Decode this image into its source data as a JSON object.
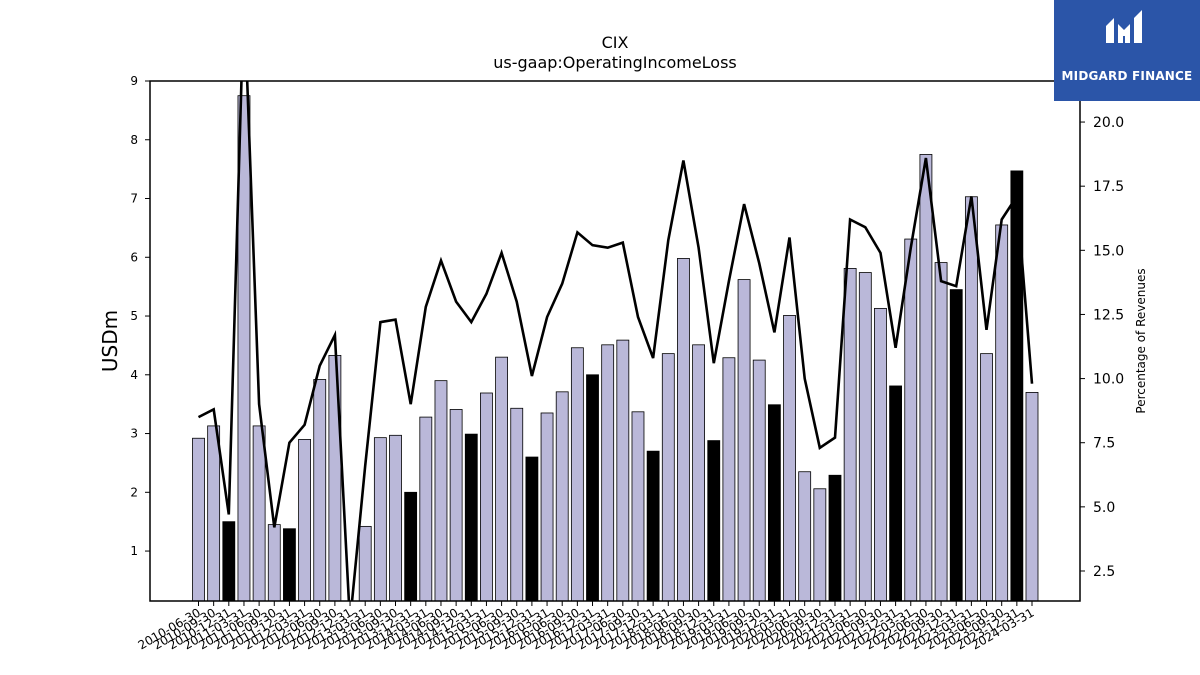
{
  "chart_data": {
    "type": "bar",
    "title": "CIX",
    "subtitle": "us-gaap:OperatingIncomeLoss",
    "ylabel": "USDm",
    "y2label": "Percentage of Revenues",
    "ylim": [
      0.15,
      9.0
    ],
    "y2lim": [
      1.33,
      21.6
    ],
    "yticks": [
      1,
      2,
      3,
      4,
      5,
      6,
      7,
      8,
      9
    ],
    "y2ticks": [
      2.5,
      5.0,
      7.5,
      10.0,
      12.5,
      15.0,
      17.5,
      20.0
    ],
    "colors": {
      "bar": "#bab8d9",
      "bar_highlight": "#000000",
      "line": "#000000"
    },
    "categories": [
      "2010-06-30",
      "2010-09-30",
      "2010-12-31",
      "2011-03-31",
      "2011-06-30",
      "2011-09-30",
      "2011-12-31",
      "2012-03-31",
      "2012-06-30",
      "2012-09-30",
      "2012-12-31",
      "2013-03-31",
      "2013-06-30",
      "2013-09-30",
      "2013-12-31",
      "2014-03-31",
      "2014-06-30",
      "2014-09-30",
      "2014-12-31",
      "2015-03-31",
      "2015-06-30",
      "2015-09-30",
      "2015-12-31",
      "2016-03-31",
      "2016-06-30",
      "2016-09-30",
      "2016-12-31",
      "2017-03-31",
      "2017-06-30",
      "2017-09-30",
      "2017-12-31",
      "2018-03-31",
      "2018-06-30",
      "2018-09-30",
      "2018-12-31",
      "2019-03-31",
      "2019-06-30",
      "2019-09-30",
      "2019-12-31",
      "2020-03-31",
      "2020-06-30",
      "2020-09-30",
      "2020-12-31",
      "2021-03-31",
      "2021-06-30",
      "2021-09-30",
      "2021-12-31",
      "2022-03-31",
      "2022-06-30",
      "2022-09-30",
      "2022-12-31",
      "2023-03-31",
      "2023-06-30",
      "2023-09-30",
      "2023-12-31",
      "2024-03-31"
    ],
    "series": [
      {
        "type": "bar",
        "values": [
          2.92,
          3.13,
          1.5,
          8.75,
          3.13,
          1.45,
          1.38,
          2.9,
          3.92,
          4.33,
          0.0,
          1.42,
          2.93,
          2.97,
          2.0,
          3.28,
          3.9,
          3.41,
          2.99,
          3.69,
          4.3,
          3.43,
          2.6,
          3.35,
          3.71,
          4.46,
          4.0,
          4.51,
          4.59,
          3.37,
          2.7,
          4.36,
          5.98,
          4.51,
          2.88,
          4.29,
          5.62,
          4.25,
          3.49,
          5.01,
          2.35,
          2.06,
          2.29,
          5.81,
          5.74,
          5.13,
          3.81,
          6.31,
          7.75,
          5.91,
          5.45,
          7.03,
          4.36,
          6.55,
          7.47,
          3.7
        ],
        "highlight": [
          false,
          false,
          true,
          false,
          false,
          false,
          true,
          false,
          false,
          false,
          false,
          false,
          false,
          false,
          true,
          false,
          false,
          false,
          true,
          false,
          false,
          false,
          true,
          false,
          false,
          false,
          true,
          false,
          false,
          false,
          true,
          false,
          false,
          false,
          true,
          false,
          false,
          false,
          true,
          false,
          false,
          false,
          true,
          false,
          false,
          false,
          true,
          false,
          false,
          false,
          true,
          false,
          false,
          false,
          true,
          false
        ]
      },
      {
        "type": "line",
        "axis": "right",
        "values": [
          8.5,
          8.8,
          4.7,
          25.0,
          9.0,
          4.2,
          7.5,
          8.2,
          10.5,
          11.7,
          0.5,
          6.6,
          12.2,
          12.3,
          9.0,
          12.8,
          14.6,
          13.0,
          12.2,
          13.3,
          14.9,
          13.0,
          10.1,
          12.4,
          13.7,
          15.7,
          15.2,
          15.1,
          15.3,
          12.4,
          10.8,
          15.4,
          18.5,
          15.1,
          10.6,
          13.8,
          16.8,
          14.5,
          11.8,
          15.5,
          10.0,
          7.3,
          7.7,
          16.2,
          15.9,
          14.9,
          11.2,
          15.1,
          18.6,
          13.8,
          13.6,
          17.1,
          11.9,
          16.2,
          17.1,
          9.8
        ]
      }
    ]
  },
  "logo": {
    "text": "MIDGARD FINANCE"
  }
}
